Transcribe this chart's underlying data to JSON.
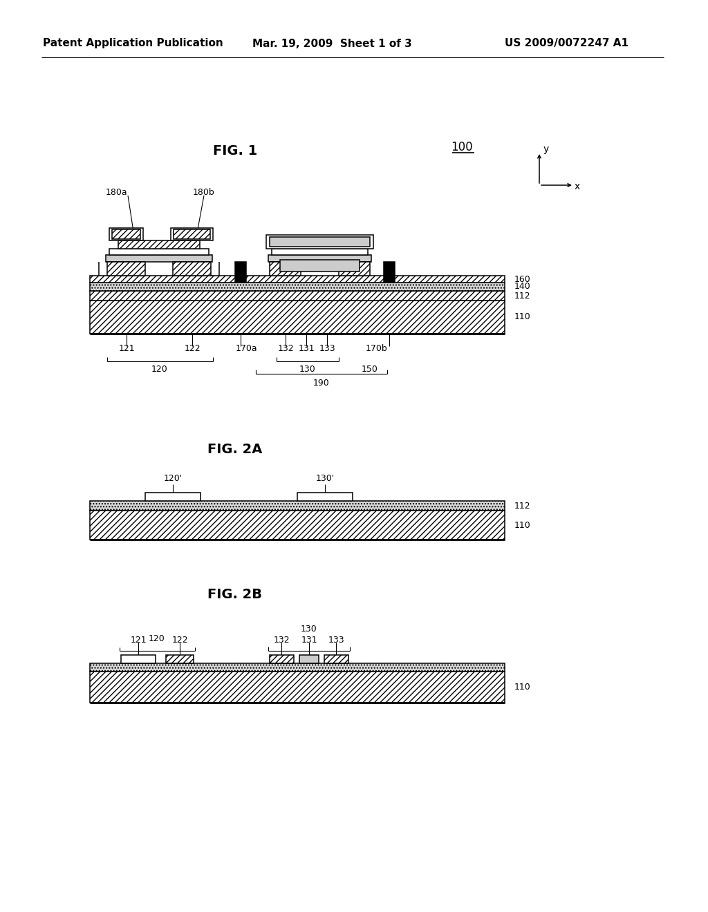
{
  "bg_color": "#ffffff",
  "header_left": "Patent Application Publication",
  "header_mid": "Mar. 19, 2009  Sheet 1 of 3",
  "header_right": "US 2009/0072247 A1",
  "fig1_label": "FIG. 1",
  "fig2a_label": "FIG. 2A",
  "fig2b_label": "FIG. 2B",
  "ref_100": "100",
  "lw": 1.1,
  "lw_thick": 2.0,
  "lw_thin": 0.8
}
